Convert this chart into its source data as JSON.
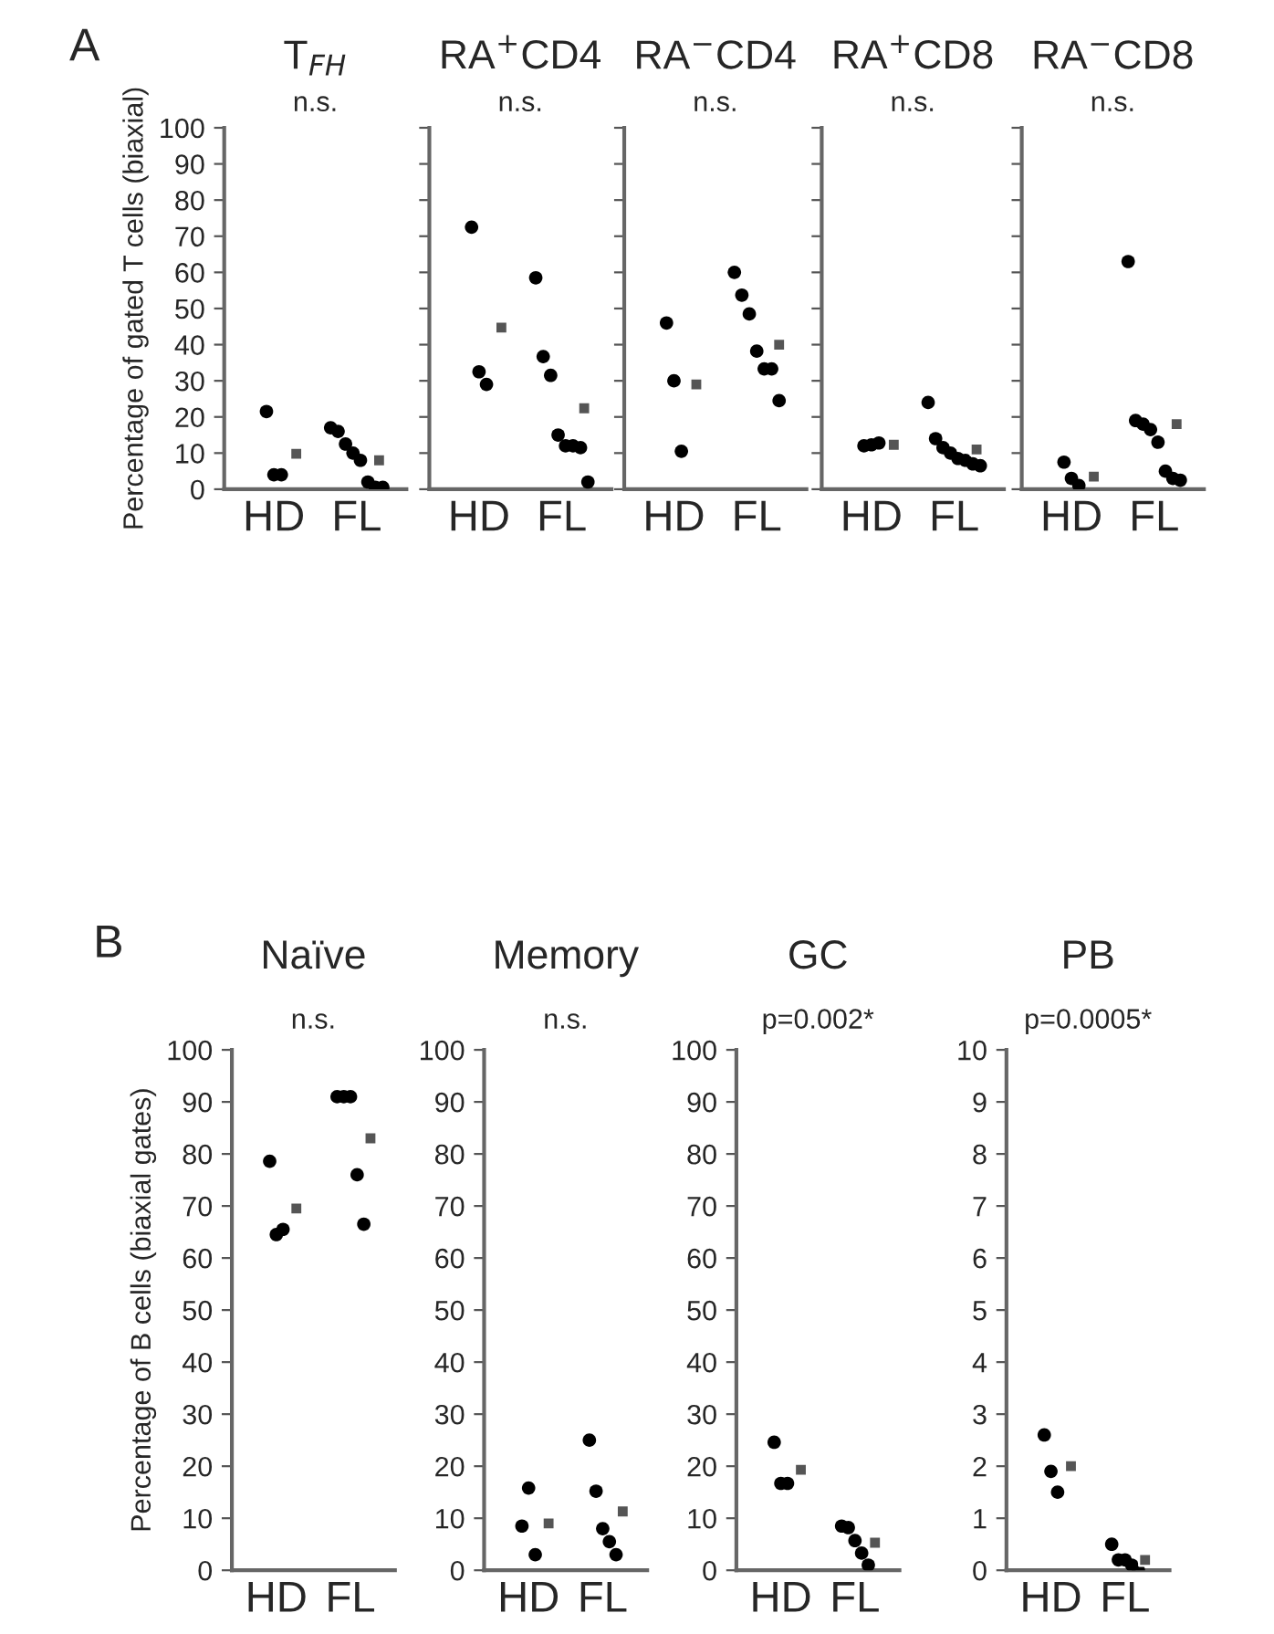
{
  "chart_data": [
    {
      "type": "scatter",
      "title": "T$_{FH}$",
      "subtitle": "n.s.",
      "ylabel": "Percentage of gated T cells (biaxial)",
      "annotations": [
        "A"
      ],
      "categories": [
        "HD",
        "FL"
      ],
      "ylim": [
        0,
        100
      ],
      "yticks": [
        0,
        10,
        20,
        30,
        40,
        50,
        60,
        70,
        80,
        90,
        100
      ],
      "series": [
        {
          "type": "scatter",
          "marker": "circle",
          "color": "#000000",
          "x": [
            "HD",
            "HD",
            "HD",
            "FL",
            "FL",
            "FL",
            "FL",
            "FL",
            "FL",
            "FL",
            "FL"
          ],
          "values": [
            21.5,
            4,
            4,
            17,
            16,
            12.5,
            10,
            8,
            2,
            0.5,
            0.5
          ]
        },
        {
          "type": "scatter",
          "marker": "square",
          "color": "#555555",
          "x": [
            "HD",
            "FL"
          ],
          "values": [
            9.8,
            8
          ]
        }
      ]
    },
    {
      "type": "scatter",
      "title": "RA$^{+}$CD4",
      "subtitle": "n.s.",
      "categories": [
        "HD",
        "FL"
      ],
      "ylim": [
        0,
        100
      ],
      "yticks": [
        0,
        10,
        20,
        30,
        40,
        50,
        60,
        70,
        80,
        90,
        100
      ],
      "tick_labels": "x",
      "series": [
        {
          "type": "scatter",
          "marker": "circle",
          "color": "#000000",
          "x": [
            "HD",
            "HD",
            "HD",
            "FL",
            "FL",
            "FL",
            "FL",
            "FL",
            "FL",
            "FL",
            "FL"
          ],
          "values": [
            72.5,
            32.5,
            29,
            58.5,
            36.7,
            31.5,
            15,
            12,
            12,
            11.5,
            2
          ]
        },
        {
          "type": "scatter",
          "marker": "square",
          "color": "#555555",
          "x": [
            "HD",
            "FL"
          ],
          "values": [
            44.7,
            22.4
          ]
        }
      ]
    },
    {
      "type": "scatter",
      "title": "RA$^{−}$CD4",
      "subtitle": "n.s.",
      "categories": [
        "HD",
        "FL"
      ],
      "ylim": [
        0,
        100
      ],
      "yticks": [
        0,
        10,
        20,
        30,
        40,
        50,
        60,
        70,
        80,
        90,
        100
      ],
      "tick_labels": "x",
      "series": [
        {
          "type": "scatter",
          "marker": "circle",
          "color": "#000000",
          "x": [
            "HD",
            "HD",
            "HD",
            "FL",
            "FL",
            "FL",
            "FL",
            "FL",
            "FL",
            "FL"
          ],
          "values": [
            46,
            30,
            10.5,
            60,
            53.7,
            48.5,
            38.2,
            33.3,
            33.3,
            24.5
          ]
        },
        {
          "type": "scatter",
          "marker": "square",
          "color": "#555555",
          "x": [
            "HD",
            "FL"
          ],
          "values": [
            29,
            40
          ]
        }
      ]
    },
    {
      "type": "scatter",
      "title": "RA$^{+}$CD8",
      "subtitle": "n.s.",
      "categories": [
        "HD",
        "FL"
      ],
      "ylim": [
        0,
        100
      ],
      "yticks": [
        0,
        10,
        20,
        30,
        40,
        50,
        60,
        70,
        80,
        90,
        100
      ],
      "tick_labels": "x",
      "series": [
        {
          "type": "scatter",
          "marker": "circle",
          "color": "#000000",
          "x": [
            "HD",
            "HD",
            "HD",
            "FL",
            "FL",
            "FL",
            "FL",
            "FL",
            "FL",
            "FL",
            "FL"
          ],
          "values": [
            12,
            12.3,
            12.8,
            24,
            14,
            11.5,
            10,
            8.5,
            8,
            7,
            6.5
          ]
        },
        {
          "type": "scatter",
          "marker": "square",
          "color": "#555555",
          "x": [
            "HD",
            "FL"
          ],
          "values": [
            12.3,
            11
          ]
        }
      ]
    },
    {
      "type": "scatter",
      "title": "RA$^{−}$CD8",
      "subtitle": "n.s.",
      "categories": [
        "HD",
        "FL"
      ],
      "ylim": [
        0,
        100
      ],
      "yticks": [
        0,
        10,
        20,
        30,
        40,
        50,
        60,
        70,
        80,
        90,
        100
      ],
      "tick_labels": "x",
      "series": [
        {
          "type": "scatter",
          "marker": "circle",
          "color": "#000000",
          "x": [
            "HD",
            "HD",
            "HD",
            "FL",
            "FL",
            "FL",
            "FL",
            "FL",
            "FL",
            "FL",
            "FL"
          ],
          "values": [
            7.5,
            3,
            1,
            63,
            19,
            18,
            16.5,
            13,
            5,
            3,
            2.5
          ]
        },
        {
          "type": "scatter",
          "marker": "square",
          "color": "#555555",
          "x": [
            "HD",
            "FL"
          ],
          "values": [
            3.5,
            18
          ]
        }
      ]
    },
    {
      "type": "scatter",
      "title": "Naïve",
      "subtitle": "n.s.",
      "ylabel": "Percentage of B cells (biaxial gates)",
      "annotations": [
        "B"
      ],
      "categories": [
        "HD",
        "FL"
      ],
      "ylim": [
        0,
        100
      ],
      "yticks": [
        0,
        10,
        20,
        30,
        40,
        50,
        60,
        70,
        80,
        90,
        100
      ],
      "series": [
        {
          "type": "scatter",
          "marker": "circle",
          "color": "#000000",
          "x": [
            "HD",
            "HD",
            "HD",
            "FL",
            "FL",
            "FL",
            "FL",
            "FL"
          ],
          "values": [
            78.6,
            64.5,
            65.5,
            91,
            91,
            91,
            76,
            66.5
          ]
        },
        {
          "type": "scatter",
          "marker": "square",
          "color": "#555555",
          "x": [
            "HD",
            "FL"
          ],
          "values": [
            69.5,
            83
          ]
        }
      ]
    },
    {
      "type": "scatter",
      "title": "Memory",
      "subtitle": "n.s.",
      "categories": [
        "HD",
        "FL"
      ],
      "ylim": [
        0,
        100
      ],
      "yticks": [
        0,
        10,
        20,
        30,
        40,
        50,
        60,
        70,
        80,
        90,
        100
      ],
      "series": [
        {
          "type": "scatter",
          "marker": "circle",
          "color": "#000000",
          "x": [
            "HD",
            "HD",
            "HD",
            "FL",
            "FL",
            "FL",
            "FL",
            "FL"
          ],
          "values": [
            8.5,
            15.8,
            3,
            25,
            15.2,
            8,
            5.5,
            3
          ]
        },
        {
          "type": "scatter",
          "marker": "square",
          "color": "#555555",
          "x": [
            "HD",
            "FL"
          ],
          "values": [
            9,
            11.3
          ]
        }
      ]
    },
    {
      "type": "scatter",
      "title": "GC",
      "subtitle": "p=0.002*",
      "categories": [
        "HD",
        "FL"
      ],
      "ylim": [
        0,
        100
      ],
      "yticks": [
        0,
        10,
        20,
        30,
        40,
        50,
        60,
        70,
        80,
        90,
        100
      ],
      "series": [
        {
          "type": "scatter",
          "marker": "circle",
          "color": "#000000",
          "x": [
            "HD",
            "HD",
            "HD",
            "FL",
            "FL",
            "FL",
            "FL",
            "FL"
          ],
          "values": [
            24.6,
            16.7,
            16.7,
            8.5,
            8.2,
            5.7,
            3.3,
            1
          ]
        },
        {
          "type": "scatter",
          "marker": "square",
          "color": "#555555",
          "x": [
            "HD",
            "FL"
          ],
          "values": [
            19.3,
            5.3
          ]
        }
      ]
    },
    {
      "type": "scatter",
      "title": "PB",
      "subtitle": "p=0.0005*",
      "categories": [
        "HD",
        "FL"
      ],
      "ylim": [
        0,
        10
      ],
      "yticks": [
        0,
        1,
        2,
        3,
        4,
        5,
        6,
        7,
        8,
        9,
        10
      ],
      "series": [
        {
          "type": "scatter",
          "marker": "circle",
          "color": "#000000",
          "x": [
            "HD",
            "HD",
            "HD",
            "FL",
            "FL",
            "FL",
            "FL",
            "FL"
          ],
          "values": [
            2.6,
            1.9,
            1.5,
            0.5,
            0.2,
            0.2,
            0.1,
            0
          ]
        },
        {
          "type": "scatter",
          "marker": "square",
          "color": "#555555",
          "x": [
            "HD",
            "FL"
          ],
          "values": [
            2.0,
            0.2
          ]
        }
      ]
    }
  ]
}
